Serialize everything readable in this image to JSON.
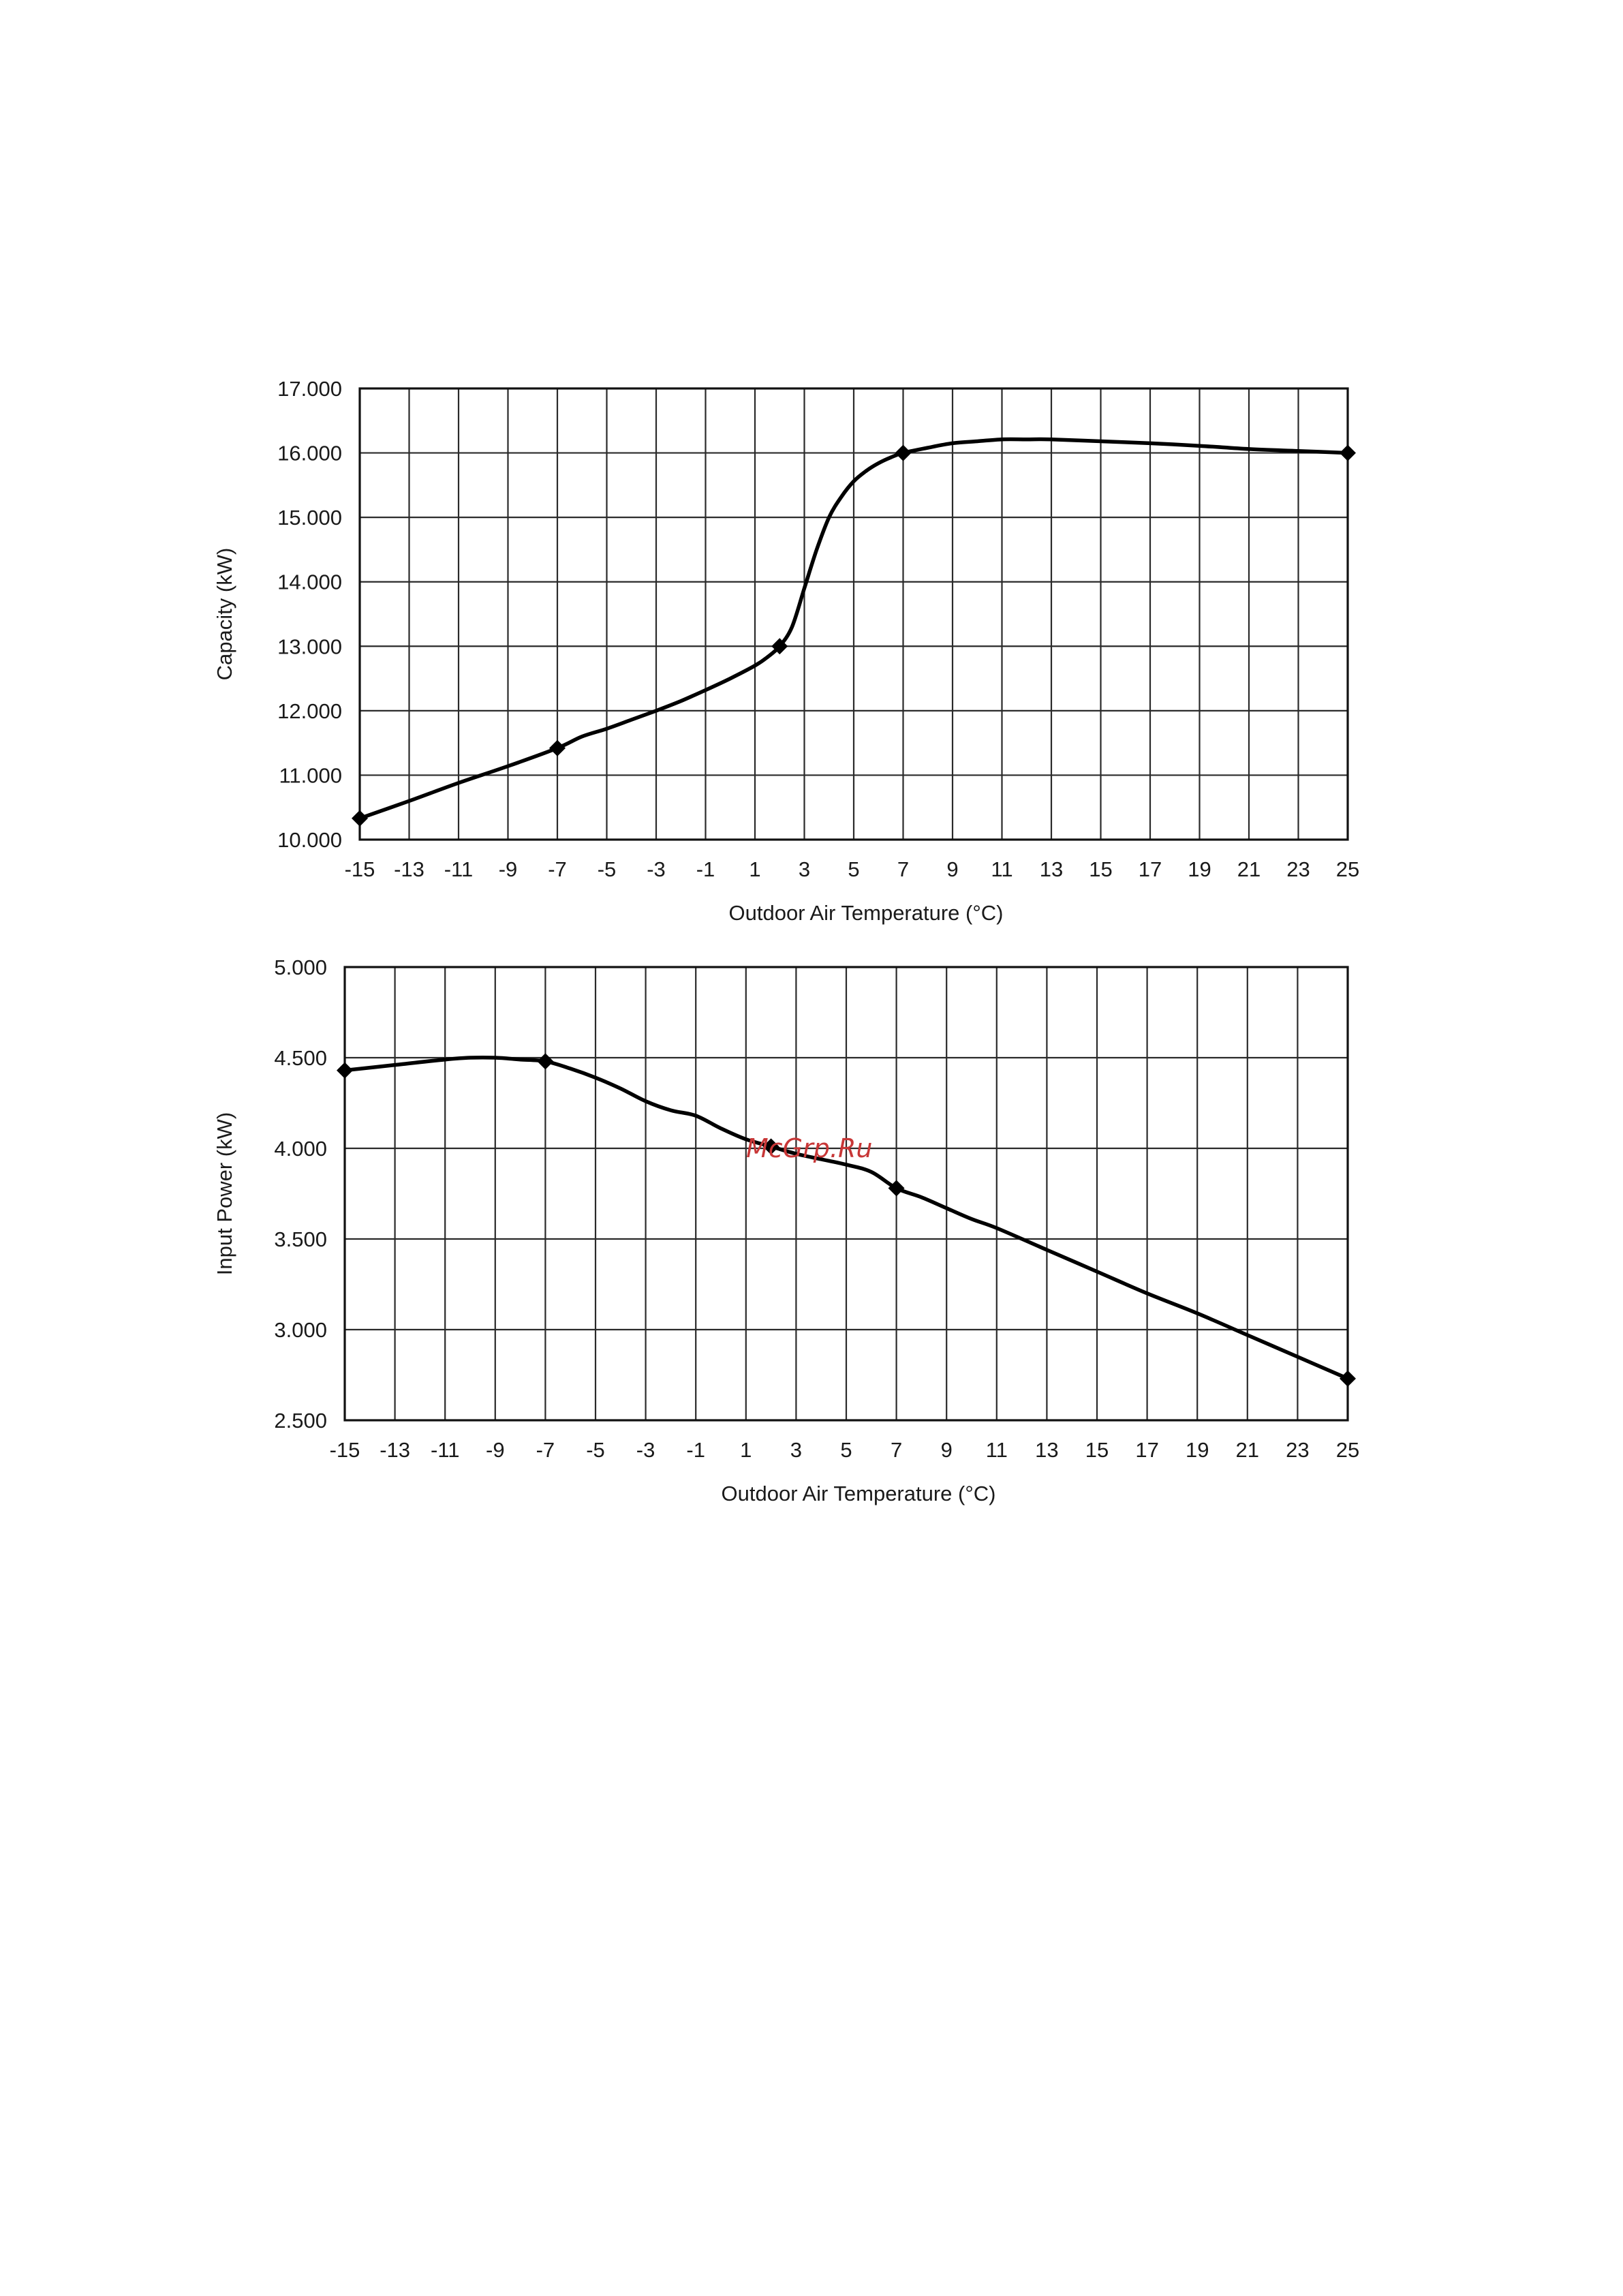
{
  "watermark": "McGrp.Ru",
  "chart_data": [
    {
      "type": "line",
      "xlabel": "Outdoor  Air Temperature (°C)",
      "ylabel": "Capacity (kW)",
      "xlim": [
        -15,
        25
      ],
      "ylim": [
        10,
        17
      ],
      "x_ticks": [
        "-15",
        "-13",
        "-11",
        "-9",
        "-7",
        "-5",
        "-3",
        "-1",
        "1",
        "3",
        "5",
        "7",
        "9",
        "11",
        "13",
        "15",
        "17",
        "19",
        "21",
        "23",
        "25"
      ],
      "y_ticks": [
        "10.000",
        "11.000",
        "12.000",
        "13.000",
        "14.000",
        "15.000",
        "16.000",
        "17.000"
      ],
      "grid": true,
      "series": [
        {
          "x": [
            -15,
            -13,
            -11,
            -9,
            -7,
            -6,
            -5,
            -4,
            -3,
            -2,
            -1,
            0,
            1,
            1.5,
            2,
            2.5,
            3,
            3.5,
            4,
            4.5,
            5,
            5.5,
            6,
            6.5,
            7,
            8,
            9,
            10,
            11,
            12,
            13,
            15,
            17,
            19,
            21,
            23,
            25
          ],
          "y": [
            10.33,
            10.6,
            10.88,
            11.14,
            11.42,
            11.6,
            11.72,
            11.86,
            12.0,
            12.15,
            12.32,
            12.5,
            12.7,
            12.83,
            13.0,
            13.3,
            13.9,
            14.5,
            15.0,
            15.32,
            15.56,
            15.72,
            15.84,
            15.93,
            16.0,
            16.08,
            16.15,
            16.18,
            16.21,
            16.21,
            16.21,
            16.18,
            16.15,
            16.11,
            16.06,
            16.03,
            16.0
          ],
          "markers": [
            [
              -15,
              10.33
            ],
            [
              -7,
              11.42
            ],
            [
              2,
              13.0
            ],
            [
              7,
              16.0
            ],
            [
              25,
              16.0
            ]
          ]
        }
      ]
    },
    {
      "type": "line",
      "xlabel": "Outdoor  Air Temperature (°C)",
      "ylabel": "Input Power (kW)",
      "xlim": [
        -15,
        25
      ],
      "ylim": [
        2.5,
        5
      ],
      "x_ticks": [
        "-15",
        "-13",
        "-11",
        "-9",
        "-7",
        "-5",
        "-3",
        "-1",
        "1",
        "3",
        "5",
        "7",
        "9",
        "11",
        "13",
        "15",
        "17",
        "19",
        "21",
        "23",
        "25"
      ],
      "y_ticks": [
        "2.500",
        "3.000",
        "3.500",
        "4.000",
        "4.500",
        "5.000"
      ],
      "grid": true,
      "series": [
        {
          "x": [
            -15,
            -13,
            -11,
            -10,
            -9,
            -8,
            -7,
            -6,
            -5,
            -4,
            -3,
            -2,
            -1,
            0,
            1,
            2,
            3,
            4,
            5,
            6,
            7,
            8,
            9,
            10,
            11,
            13,
            15,
            17,
            19,
            21,
            23,
            25
          ],
          "y": [
            4.43,
            4.46,
            4.49,
            4.5,
            4.5,
            4.49,
            4.48,
            4.44,
            4.39,
            4.33,
            4.26,
            4.21,
            4.18,
            4.11,
            4.05,
            4.01,
            3.97,
            3.94,
            3.91,
            3.87,
            3.78,
            3.73,
            3.67,
            3.61,
            3.56,
            3.44,
            3.32,
            3.2,
            3.09,
            2.97,
            2.85,
            2.73
          ],
          "markers": [
            [
              -15,
              4.43
            ],
            [
              -7,
              4.48
            ],
            [
              2,
              4.01
            ],
            [
              7,
              3.78
            ],
            [
              25,
              2.73
            ]
          ]
        }
      ]
    }
  ]
}
